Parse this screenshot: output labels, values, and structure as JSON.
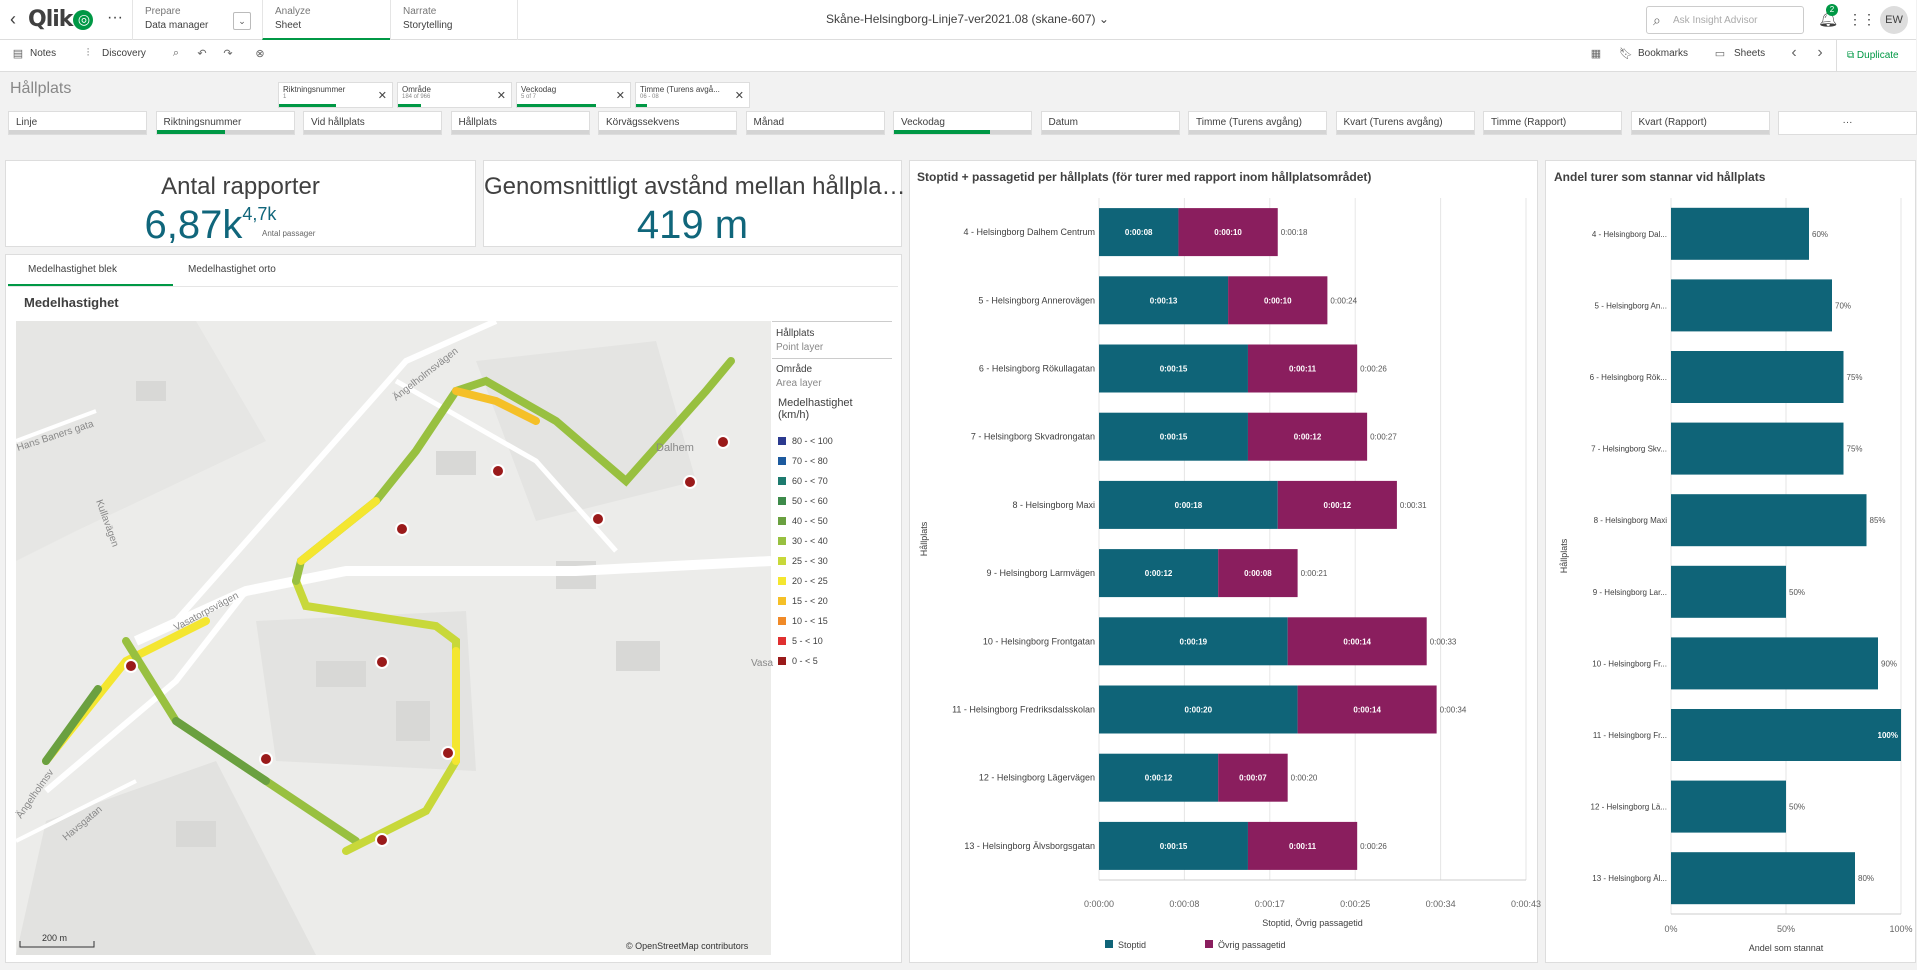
{
  "topbar": {
    "back": "‹",
    "logo": "Qlik",
    "more": "···",
    "prepare_label": "Prepare",
    "prepare_value": "Data manager",
    "analyze_label": "Analyze",
    "analyze_value": "Sheet",
    "narrate_label": "Narrate",
    "narrate_value": "Storytelling",
    "app_title": "Skåne-Helsingborg-Linje7-ver2021.08 (skane-607) ⌄",
    "search_placeholder": "Ask Insight Advisor",
    "notif_count": "2",
    "avatar": "EW"
  },
  "toolbar": {
    "notes": "Notes",
    "discovery": "Discovery",
    "bookmarks": "Bookmarks",
    "sheets": "Sheets",
    "duplicate": "Duplicate",
    "chips": [
      {
        "name": "Riktningsnummer",
        "value": "1",
        "fill": 0.5
      },
      {
        "name": "Område",
        "value": "184 of 966",
        "fill": 0.2
      },
      {
        "name": "Veckodag",
        "value": "5 of 7",
        "fill": 0.7
      },
      {
        "name": "Timme (Turens avgå...",
        "value": "06 - 08",
        "fill": 0.1
      }
    ]
  },
  "sheet_title": "Hållplats",
  "filters": [
    {
      "label": "Linje",
      "fill": 0
    },
    {
      "label": "Riktningsnummer",
      "fill": 0.5
    },
    {
      "label": "Vid hållplats",
      "fill": 0
    },
    {
      "label": "Hållplats",
      "fill": 0
    },
    {
      "label": "Körvägssekvens",
      "fill": 0
    },
    {
      "label": "Månad",
      "fill": 0
    },
    {
      "label": "Veckodag",
      "fill": 0.7
    },
    {
      "label": "Datum",
      "fill": 0
    },
    {
      "label": "Timme (Turens avgång)",
      "fill": 0
    },
    {
      "label": "Kvart (Turens avgång)",
      "fill": 0
    },
    {
      "label": "Timme (Rapport)",
      "fill": 0
    },
    {
      "label": "Kvart (Rapport)",
      "fill": 0
    },
    {
      "label": "···",
      "fill": 0
    }
  ],
  "kpi1": {
    "title": "Antal rapporter",
    "value": "6,87k",
    "sub_value": "4,7k",
    "sub_label": "Antal passager"
  },
  "kpi2": {
    "title": "Genomsnittligt avstånd mellan hållpla…",
    "value": "419 m"
  },
  "map": {
    "tab1": "Medelhastighet blek",
    "tab2": "Medelhastighet orto",
    "title": "Medelhastighet",
    "layer1_name": "Hållplats",
    "layer1_type": "Point layer",
    "layer2_name": "Område",
    "layer2_type": "Area layer",
    "legend_title": "Medelhastighet (km/h)",
    "legend": [
      {
        "label": "80 - < 100",
        "color": "#2b3a8f"
      },
      {
        "label": "70 - < 80",
        "color": "#1d5a9e"
      },
      {
        "label": "60 - < 70",
        "color": "#1d7a6e"
      },
      {
        "label": "50 - < 60",
        "color": "#3d8a4a"
      },
      {
        "label": "40 - < 50",
        "color": "#6aa040"
      },
      {
        "label": "30 - < 40",
        "color": "#98c040"
      },
      {
        "label": "25 - < 30",
        "color": "#c8d83a"
      },
      {
        "label": "20 - < 25",
        "color": "#f4e630"
      },
      {
        "label": "15 - < 20",
        "color": "#f5c028"
      },
      {
        "label": "10 - < 15",
        "color": "#f08a28"
      },
      {
        "label": "5 - < 10",
        "color": "#e03030"
      },
      {
        "label": "0 - < 5",
        "color": "#9a1a1a"
      }
    ],
    "streets": [
      "Ängelholmsvägen",
      "Hans Baners gata",
      "Kullavägen",
      "Dalhem",
      "Vasatorpsvägen",
      "Vasa",
      "Ängelholmsv",
      "Havsgatan"
    ],
    "scale": "200 m",
    "attribution": "© OpenStreetMap contributors"
  },
  "chart_data": [
    {
      "type": "bar",
      "title": "Stoptid + passagetid per hållplats (för turer med rapport inom hållplatsområdet)",
      "ylabel": "Hållplats",
      "xlabel": "Stoptid, Övrig passagetid",
      "categories": [
        "4 - Helsingborg Dalhem Centrum",
        "5 - Helsingborg Annerovägen",
        "6 - Helsingborg Rökullagatan",
        "7 - Helsingborg Skvadrongatan",
        "8 - Helsingborg Maxi",
        "9 - Helsingborg Larmvägen",
        "10 - Helsingborg Frontgatan",
        "11 - Helsingborg Fredriksdalsskolan",
        "12 - Helsingborg Lägervägen",
        "13 - Helsingborg Älvsborgsgatan"
      ],
      "series": [
        {
          "name": "Stoptid",
          "color": "#0f6478",
          "values": [
            8,
            13,
            15,
            15,
            18,
            12,
            19,
            20,
            12,
            15
          ],
          "labels": [
            "0:00:08",
            "0:00:13",
            "0:00:15",
            "0:00:15",
            "0:00:18",
            "0:00:12",
            "0:00:19",
            "0:00:20",
            "0:00:12",
            "0:00:15"
          ]
        },
        {
          "name": "Övrig passagetid",
          "color": "#8a1e5e",
          "values": [
            10,
            10,
            11,
            12,
            12,
            8,
            14,
            14,
            7,
            11
          ],
          "labels": [
            "0:00:10",
            "0:00:10",
            "0:00:11",
            "0:00:12",
            "0:00:12",
            "0:00:08",
            "0:00:14",
            "0:00:14",
            "0:00:07",
            "0:00:11"
          ]
        }
      ],
      "totals": [
        "0:00:18",
        "0:00:24",
        "0:00:26",
        "0:00:27",
        "0:00:31",
        "0:00:21",
        "0:00:33",
        "0:00:34",
        "0:00:20",
        "0:00:26"
      ],
      "xticks": [
        "0:00:00",
        "0:00:08",
        "0:00:17",
        "0:00:25",
        "0:00:34",
        "0:00:43"
      ],
      "xlim": [
        0,
        43
      ]
    },
    {
      "type": "bar",
      "title": "Andel turer som stannar vid hållplats",
      "ylabel": "Hållplats",
      "xlabel": "Andel som stannat",
      "categories": [
        "4 - Helsingborg Dal...",
        "5 - Helsingborg An...",
        "6 - Helsingborg Rök...",
        "7 - Helsingborg Skv...",
        "8 - Helsingborg Maxi",
        "9 - Helsingborg Lar...",
        "10 - Helsingborg Fr...",
        "11 - Helsingborg Fr...",
        "12 - Helsingborg Lä...",
        "13 - Helsingborg Äl..."
      ],
      "values": [
        60,
        70,
        75,
        75,
        85,
        50,
        90,
        100,
        50,
        80
      ],
      "labels": [
        "60%",
        "70%",
        "75%",
        "75%",
        "85%",
        "50%",
        "90%",
        "100%",
        "50%",
        "80%"
      ],
      "xticks": [
        "0%",
        "50%",
        "100%"
      ],
      "xlim": [
        0,
        100
      ]
    }
  ]
}
